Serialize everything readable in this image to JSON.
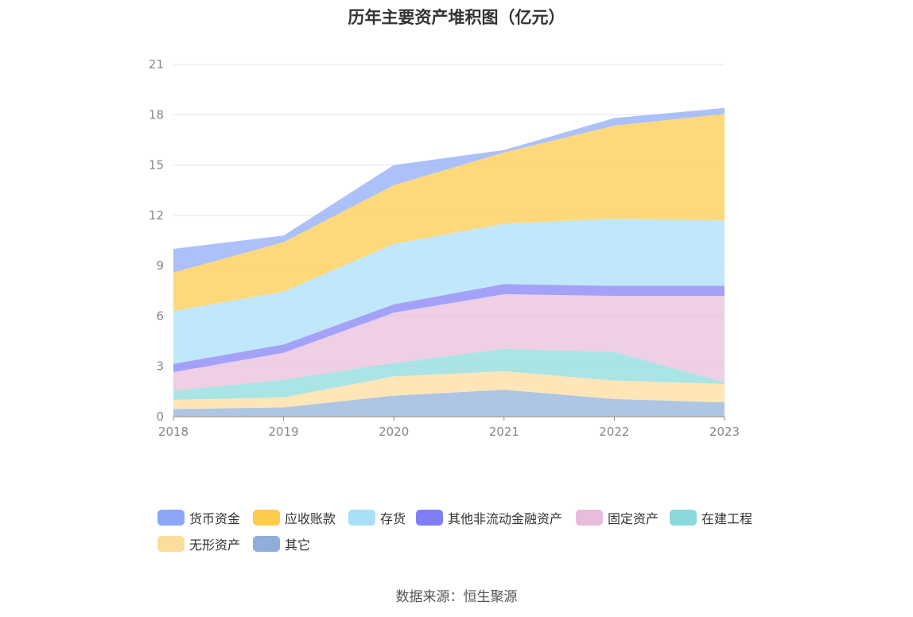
{
  "title": "历年主要资产堆积图（亿元）",
  "source": "数据来源：恒生聚源",
  "chart_data": {
    "type": "area",
    "stacked": true,
    "categories": [
      "2018",
      "2019",
      "2020",
      "2021",
      "2022",
      "2023"
    ],
    "ylim": [
      0,
      21
    ],
    "yticks": [
      0,
      3,
      6,
      9,
      12,
      15,
      18,
      21
    ],
    "grid": true,
    "legend_position": "bottom",
    "series": [
      {
        "name": "其它",
        "color": "#8fafdb",
        "values": [
          0.45,
          0.55,
          1.25,
          1.6,
          1.05,
          0.85
        ]
      },
      {
        "name": "无形资产",
        "color": "#fddd9c",
        "values": [
          0.55,
          0.6,
          1.15,
          1.1,
          1.1,
          1.1
        ]
      },
      {
        "name": "在建工程",
        "color": "#8ad9db",
        "values": [
          0.55,
          1.05,
          0.8,
          1.35,
          1.7,
          0.1
        ]
      },
      {
        "name": "固定资产",
        "color": "#e8bcdb",
        "values": [
          1.1,
          1.6,
          3.0,
          3.25,
          3.35,
          5.15
        ]
      },
      {
        "name": "其他非流动金融资产",
        "color": "#7f7ef5",
        "values": [
          0.5,
          0.5,
          0.5,
          0.6,
          0.6,
          0.6
        ]
      },
      {
        "name": "存货",
        "color": "#a9dff8",
        "values": [
          3.15,
          3.15,
          3.6,
          3.6,
          4.0,
          3.9
        ]
      },
      {
        "name": "应收账款",
        "color": "#fecb4a",
        "values": [
          2.3,
          2.95,
          3.5,
          4.25,
          5.55,
          6.35
        ]
      },
      {
        "name": "货币资金",
        "color": "#8ca7f8",
        "values": [
          1.4,
          0.4,
          1.2,
          0.15,
          0.45,
          0.35
        ]
      }
    ]
  },
  "legend": [
    {
      "label": "货币资金",
      "color": "#8ca7f8"
    },
    {
      "label": "应收账款",
      "color": "#fecb4a"
    },
    {
      "label": "存货",
      "color": "#a9dff8"
    },
    {
      "label": "其他非流动金融资产",
      "color": "#7f7ef5"
    },
    {
      "label": "固定资产",
      "color": "#e8bcdb"
    },
    {
      "label": "在建工程",
      "color": "#8ad9db"
    },
    {
      "label": "无形资产",
      "color": "#fddd9c"
    },
    {
      "label": "其它",
      "color": "#8fafdb"
    }
  ]
}
